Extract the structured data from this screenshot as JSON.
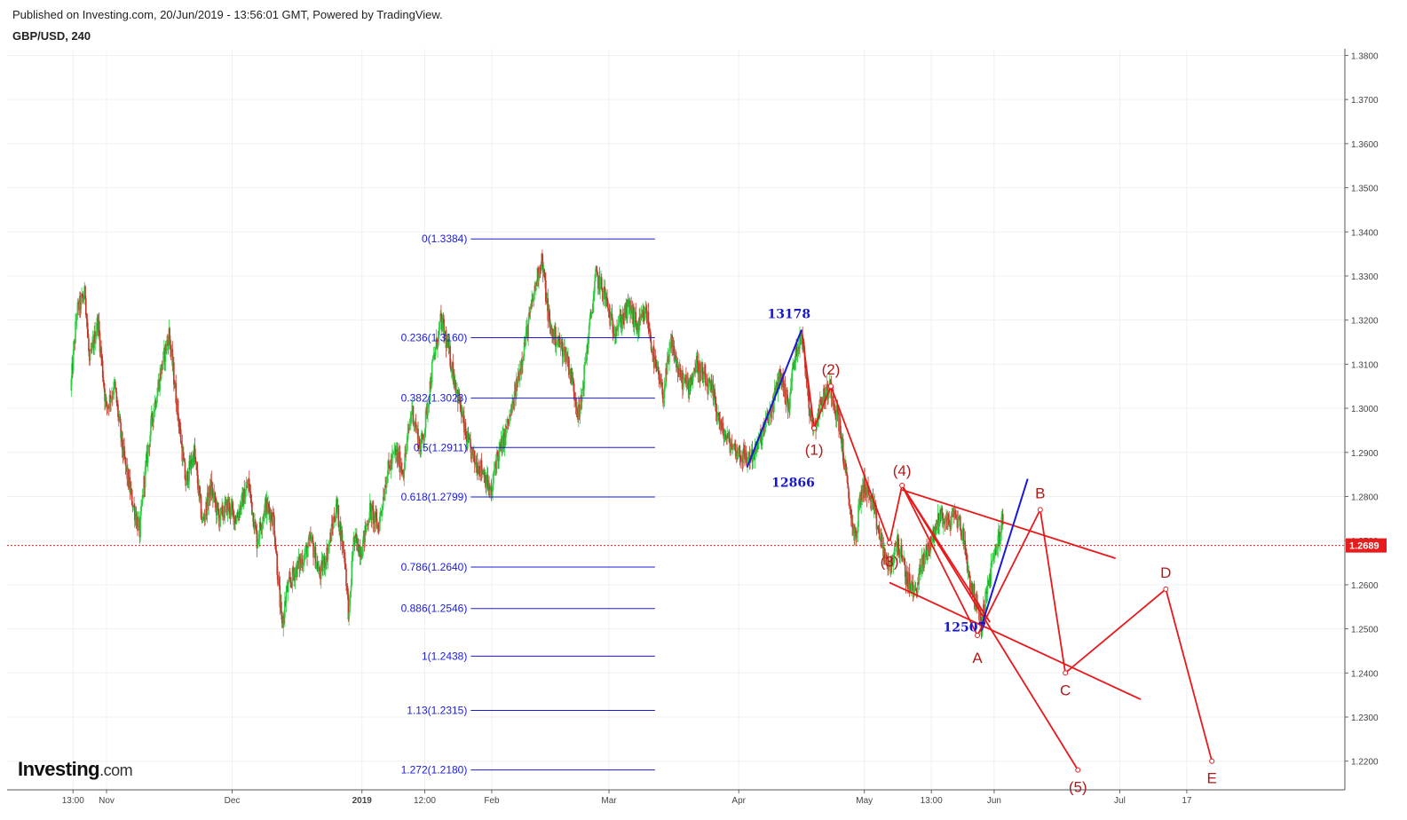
{
  "header": {
    "published": "Published on Investing.com, 20/Jun/2019 - 13:56:01 GMT, Powered by TradingView.",
    "symbol": "GBP/USD, 240"
  },
  "logo": {
    "brand": "Investing",
    "suffix": ".com"
  },
  "colors": {
    "up": "#2ecc40",
    "down": "#c0392b",
    "fib": "#1a1adb",
    "wave": "#e8191b",
    "wave_label": "#b01a1a",
    "blue_label": "#1818c8",
    "price_line": "#e81c1c",
    "grid": "#f0f0f0"
  },
  "chart_data": {
    "type": "candlestick",
    "symbol": "GBP/USD",
    "timeframe": "240",
    "ylim": [
      1.2135,
      1.3815
    ],
    "y_ticks": [
      "1.3800",
      "1.3700",
      "1.3600",
      "1.3500",
      "1.3400",
      "1.3300",
      "1.3200",
      "1.3100",
      "1.3000",
      "1.2900",
      "1.2800",
      "1.2700",
      "1.2600",
      "1.2500",
      "1.2400",
      "1.2300",
      "1.2200"
    ],
    "x_ticks": [
      {
        "label": "13:00",
        "day": -7
      },
      {
        "label": "Nov",
        "day": 1
      },
      {
        "label": "Dec",
        "day": 31
      },
      {
        "label": "2019",
        "day": 62,
        "bold": true
      },
      {
        "label": "12:00",
        "day": 77
      },
      {
        "label": "Feb",
        "day": 93
      },
      {
        "label": "Mar",
        "day": 121
      },
      {
        "label": "Apr",
        "day": 152
      },
      {
        "label": "May",
        "day": 182
      },
      {
        "label": "13:00",
        "day": 198
      },
      {
        "label": "Jun",
        "day": 213
      },
      {
        "label": "Jul",
        "day": 243
      },
      {
        "label": "17",
        "day": 259
      }
    ],
    "current_price": {
      "value": 1.2689,
      "label": "1.2689"
    },
    "price_path": [
      [
        -7.5,
        1.304
      ],
      [
        -6,
        1.322
      ],
      [
        -4,
        1.326
      ],
      [
        -3,
        1.31
      ],
      [
        -1,
        1.32
      ],
      [
        1,
        1.3
      ],
      [
        3,
        1.305
      ],
      [
        5,
        1.29
      ],
      [
        7,
        1.28
      ],
      [
        9,
        1.272
      ],
      [
        10,
        1.283
      ],
      [
        12,
        1.298
      ],
      [
        14,
        1.308
      ],
      [
        16,
        1.317
      ],
      [
        18,
        1.3
      ],
      [
        20,
        1.283
      ],
      [
        22,
        1.29
      ],
      [
        24,
        1.274
      ],
      [
        26,
        1.282
      ],
      [
        28,
        1.275
      ],
      [
        30,
        1.278
      ],
      [
        32,
        1.275
      ],
      [
        35,
        1.283
      ],
      [
        37,
        1.27
      ],
      [
        39,
        1.278
      ],
      [
        41,
        1.275
      ],
      [
        42,
        1.262
      ],
      [
        43,
        1.25
      ],
      [
        44,
        1.258
      ],
      [
        46,
        1.263
      ],
      [
        48,
        1.266
      ],
      [
        50,
        1.27
      ],
      [
        52,
        1.262
      ],
      [
        54,
        1.268
      ],
      [
        56,
        1.278
      ],
      [
        58,
        1.266
      ],
      [
        59,
        1.252
      ],
      [
        60,
        1.27
      ],
      [
        62,
        1.268
      ],
      [
        64,
        1.277
      ],
      [
        66,
        1.273
      ],
      [
        68,
        1.285
      ],
      [
        70,
        1.29
      ],
      [
        72,
        1.286
      ],
      [
        74,
        1.3
      ],
      [
        76,
        1.291
      ],
      [
        77,
        1.295
      ],
      [
        79,
        1.31
      ],
      [
        81,
        1.32
      ],
      [
        83,
        1.312
      ],
      [
        85,
        1.303
      ],
      [
        87,
        1.293
      ],
      [
        89,
        1.288
      ],
      [
        91,
        1.286
      ],
      [
        93,
        1.28
      ],
      [
        94,
        1.288
      ],
      [
        96,
        1.293
      ],
      [
        98,
        1.3
      ],
      [
        100,
        1.31
      ],
      [
        102,
        1.32
      ],
      [
        104,
        1.33
      ],
      [
        105,
        1.334
      ],
      [
        107,
        1.318
      ],
      [
        109,
        1.315
      ],
      [
        111,
        1.312
      ],
      [
        113,
        1.303
      ],
      [
        114,
        1.298
      ],
      [
        116,
        1.315
      ],
      [
        118,
        1.33
      ],
      [
        120,
        1.326
      ],
      [
        122,
        1.318
      ],
      [
        124,
        1.32
      ],
      [
        126,
        1.323
      ],
      [
        128,
        1.318
      ],
      [
        130,
        1.322
      ],
      [
        132,
        1.31
      ],
      [
        134,
        1.303
      ],
      [
        136,
        1.315
      ],
      [
        138,
        1.307
      ],
      [
        140,
        1.305
      ],
      [
        142,
        1.31
      ],
      [
        144,
        1.306
      ],
      [
        146,
        1.303
      ],
      [
        148,
        1.295
      ],
      [
        150,
        1.292
      ],
      [
        152,
        1.29
      ],
      [
        154,
        1.2885
      ],
      [
        156,
        1.29
      ],
      [
        158,
        1.295
      ],
      [
        160,
        1.3
      ],
      [
        162,
        1.308
      ],
      [
        164,
        1.3
      ],
      [
        165,
        1.309
      ],
      [
        167,
        1.3178
      ],
      [
        169,
        1.3
      ],
      [
        170,
        1.2955
      ],
      [
        172,
        1.302
      ],
      [
        174,
        1.305
      ],
      [
        176,
        1.297
      ],
      [
        177,
        1.29
      ],
      [
        178,
        1.282
      ],
      [
        179,
        1.275
      ],
      [
        180,
        1.27
      ],
      [
        181,
        1.279
      ],
      [
        182,
        1.283
      ],
      [
        184,
        1.278
      ],
      [
        186,
        1.27
      ],
      [
        188,
        1.263
      ],
      [
        190,
        1.27
      ],
      [
        192,
        1.262
      ],
      [
        194,
        1.258
      ],
      [
        196,
        1.265
      ],
      [
        198,
        1.27
      ],
      [
        199,
        1.272
      ],
      [
        200,
        1.276
      ],
      [
        202,
        1.274
      ],
      [
        204,
        1.276
      ],
      [
        205,
        1.273
      ],
      [
        206,
        1.27
      ],
      [
        207,
        1.262
      ],
      [
        209,
        1.255
      ],
      [
        210,
        1.2507
      ],
      [
        212,
        1.262
      ],
      [
        214,
        1.27
      ],
      [
        215,
        1.274
      ]
    ],
    "fib_levels": [
      {
        "label": "0(1.3384)",
        "value": 1.3384
      },
      {
        "label": "0.236(1.3160)",
        "value": 1.316
      },
      {
        "label": "0.382(1.3023)",
        "value": 1.3023
      },
      {
        "label": "0.5(1.2911)",
        "value": 1.2911
      },
      {
        "label": "0.618(1.2799)",
        "value": 1.2799
      },
      {
        "label": "0.786(1.2640)",
        "value": 1.264
      },
      {
        "label": "0.886(1.2546)",
        "value": 1.2546
      },
      {
        "label": "1(1.2438)",
        "value": 1.2438
      },
      {
        "label": "1.13(1.2315)",
        "value": 1.2315
      },
      {
        "label": "1.272(1.2180)",
        "value": 1.218
      }
    ],
    "fib_range_days": [
      88,
      132
    ],
    "blue_labels": [
      {
        "text": "13178",
        "day": 164,
        "price": 1.3214
      },
      {
        "text": "12866",
        "day": 165,
        "price": 1.2832
      },
      {
        "text": "12507",
        "day": 206,
        "price": 1.2504
      }
    ],
    "blue_lines": [
      [
        [
          154,
          1.2866
        ],
        [
          167,
          1.3178
        ]
      ],
      [
        [
          210,
          1.2507
        ],
        [
          221,
          1.284
        ]
      ]
    ],
    "wave_points": [
      {
        "label": "(1)",
        "day": 170,
        "price": 1.2955,
        "label_dx": 0,
        "label_dy": 30
      },
      {
        "label": "(2)",
        "day": 174,
        "price": 1.305,
        "label_dx": 0,
        "label_dy": -13
      },
      {
        "label": "(3)",
        "day": 188,
        "price": 1.2695,
        "label_dx": 0,
        "label_dy": 27
      },
      {
        "label": "(4)",
        "day": 191,
        "price": 1.2825,
        "label_dx": 0,
        "label_dy": -11
      },
      {
        "label": "(5)",
        "day": 233,
        "price": 1.218,
        "label_dx": 0,
        "label_dy": 25
      },
      {
        "label": "A",
        "day": 209,
        "price": 1.2485,
        "label_dx": 0,
        "label_dy": 31
      },
      {
        "label": "B",
        "day": 224,
        "price": 1.277,
        "label_dx": 0,
        "label_dy": -13
      },
      {
        "label": "C",
        "day": 230,
        "price": 1.24,
        "label_dx": 0,
        "label_dy": 25
      },
      {
        "label": "D",
        "day": 254,
        "price": 1.259,
        "label_dx": 0,
        "label_dy": -13
      },
      {
        "label": "E",
        "day": 265,
        "price": 1.22,
        "label_dx": 0,
        "label_dy": 25
      }
    ],
    "wave_lines": [
      [
        [
          167,
          1.3178
        ],
        [
          170,
          1.2955
        ],
        [
          174,
          1.305
        ],
        [
          188,
          1.2695
        ],
        [
          191,
          1.2825
        ],
        [
          209,
          1.2485
        ],
        [
          224,
          1.277
        ],
        [
          230,
          1.24
        ],
        [
          254,
          1.259
        ],
        [
          265,
          1.22
        ]
      ],
      [
        [
          191,
          1.2825
        ],
        [
          233,
          1.218
        ]
      ],
      [
        [
          191,
          1.2825
        ],
        [
          212,
          1.2515
        ]
      ],
      [
        [
          191,
          1.2815
        ],
        [
          242,
          1.266
        ]
      ],
      [
        [
          188,
          1.2605
        ],
        [
          248,
          1.234
        ]
      ]
    ]
  }
}
